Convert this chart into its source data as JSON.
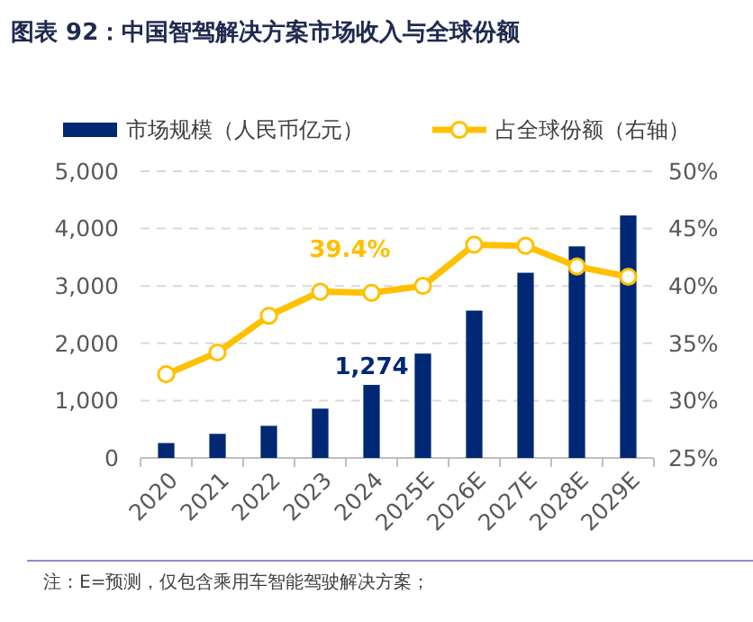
{
  "chart_data": {
    "type": "bar",
    "title": "图表 92：中国智驾解决方案市场收入与全球份额",
    "categories": [
      "2020",
      "2021",
      "2022",
      "2023",
      "2024",
      "2025E",
      "2026E",
      "2027E",
      "2028E",
      "2029E"
    ],
    "series": [
      {
        "name": "市场规模（人民币亿元）",
        "color": "#002874",
        "values": [
          260,
          420,
          560,
          860,
          1274,
          1820,
          2570,
          3230,
          3690,
          4230
        ],
        "value_labels": [
          null,
          null,
          null,
          null,
          "1,274",
          null,
          null,
          null,
          null,
          null
        ]
      },
      {
        "name": "占全球份额（右轴）",
        "type": "line",
        "axis": "y2",
        "color": "#ffc000",
        "marker": "circle",
        "values": [
          32.3,
          34.2,
          37.4,
          39.5,
          39.4,
          40.0,
          43.6,
          43.5,
          41.7,
          40.8
        ],
        "value_labels": [
          null,
          null,
          null,
          null,
          "39.4%",
          null,
          null,
          null,
          null,
          null
        ]
      }
    ],
    "ylim": [
      0,
      5000
    ],
    "yticks": [
      0,
      {
        "value": 1000,
        "label": "1,000"
      },
      {
        "value": 2000,
        "label": "2,000"
      },
      {
        "value": 3000,
        "label": "3,000"
      },
      {
        "value": 4000,
        "label": "4,000"
      },
      {
        "value": 5000,
        "label": "5,000"
      }
    ],
    "y2lim": [
      25,
      50
    ],
    "y2ticks": [
      {
        "value": 25,
        "label": "25%"
      },
      {
        "value": 30,
        "label": "30%"
      },
      {
        "value": 35,
        "label": "35%"
      },
      {
        "value": 40,
        "label": "40%"
      },
      {
        "value": 45,
        "label": "45%"
      },
      {
        "value": 50,
        "label": "50%"
      }
    ],
    "grid": "y",
    "legend": "top",
    "annotations": [
      "注：E=预测，仅包含乘用车智能驾驶解决方案；"
    ]
  }
}
